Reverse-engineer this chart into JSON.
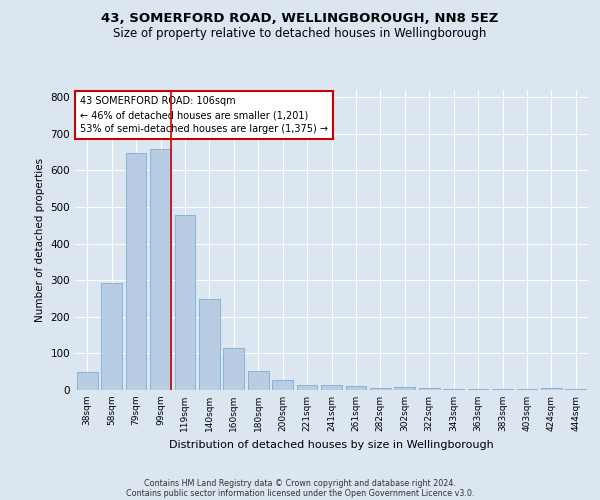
{
  "title": "43, SOMERFORD ROAD, WELLINGBOROUGH, NN8 5EZ",
  "subtitle": "Size of property relative to detached houses in Wellingborough",
  "xlabel": "Distribution of detached houses by size in Wellingborough",
  "ylabel": "Number of detached properties",
  "categories": [
    "38sqm",
    "58sqm",
    "79sqm",
    "99sqm",
    "119sqm",
    "140sqm",
    "160sqm",
    "180sqm",
    "200sqm",
    "221sqm",
    "241sqm",
    "261sqm",
    "282sqm",
    "302sqm",
    "322sqm",
    "343sqm",
    "363sqm",
    "383sqm",
    "403sqm",
    "424sqm",
    "444sqm"
  ],
  "values": [
    48,
    293,
    648,
    660,
    478,
    248,
    115,
    53,
    27,
    15,
    13,
    10,
    5,
    8,
    5,
    3,
    3,
    2,
    2,
    5,
    2
  ],
  "bar_color": "#b8cce4",
  "bar_edge_color": "#7bafd4",
  "bg_color": "#dce6f1",
  "plot_bg_color": "#dce6f1",
  "grid_color": "#ffffff",
  "annotation_line1": "43 SOMERFORD ROAD: 106sqm",
  "annotation_line2": "← 46% of detached houses are smaller (1,201)",
  "annotation_line3": "53% of semi-detached houses are larger (1,375) →",
  "annotation_box_color": "#ffffff",
  "annotation_box_edge_color": "#cc0000",
  "red_line_x": 3.42,
  "red_line_color": "#cc0000",
  "ylim": [
    0,
    820
  ],
  "yticks": [
    0,
    100,
    200,
    300,
    400,
    500,
    600,
    700,
    800
  ],
  "footer_line1": "Contains HM Land Registry data © Crown copyright and database right 2024.",
  "footer_line2": "Contains public sector information licensed under the Open Government Licence v3.0."
}
